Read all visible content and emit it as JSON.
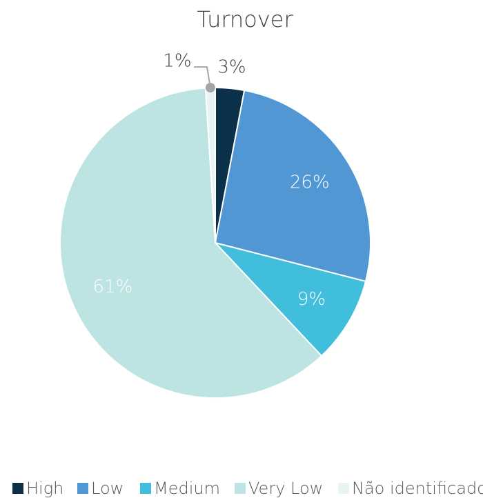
{
  "chart_data": {
    "type": "pie",
    "title": "Turnover",
    "categories": [
      "High",
      "Low",
      "Medium",
      "Very Low",
      "Não identificado"
    ],
    "values": [
      3,
      26,
      9,
      61,
      1
    ],
    "value_labels": [
      "3%",
      "26%",
      "9%",
      "61%",
      "1%"
    ],
    "colors": [
      "#0b3049",
      "#5197d3",
      "#42bedd",
      "#bde3e2",
      "#e8f4f3"
    ],
    "legend": "bottom"
  }
}
